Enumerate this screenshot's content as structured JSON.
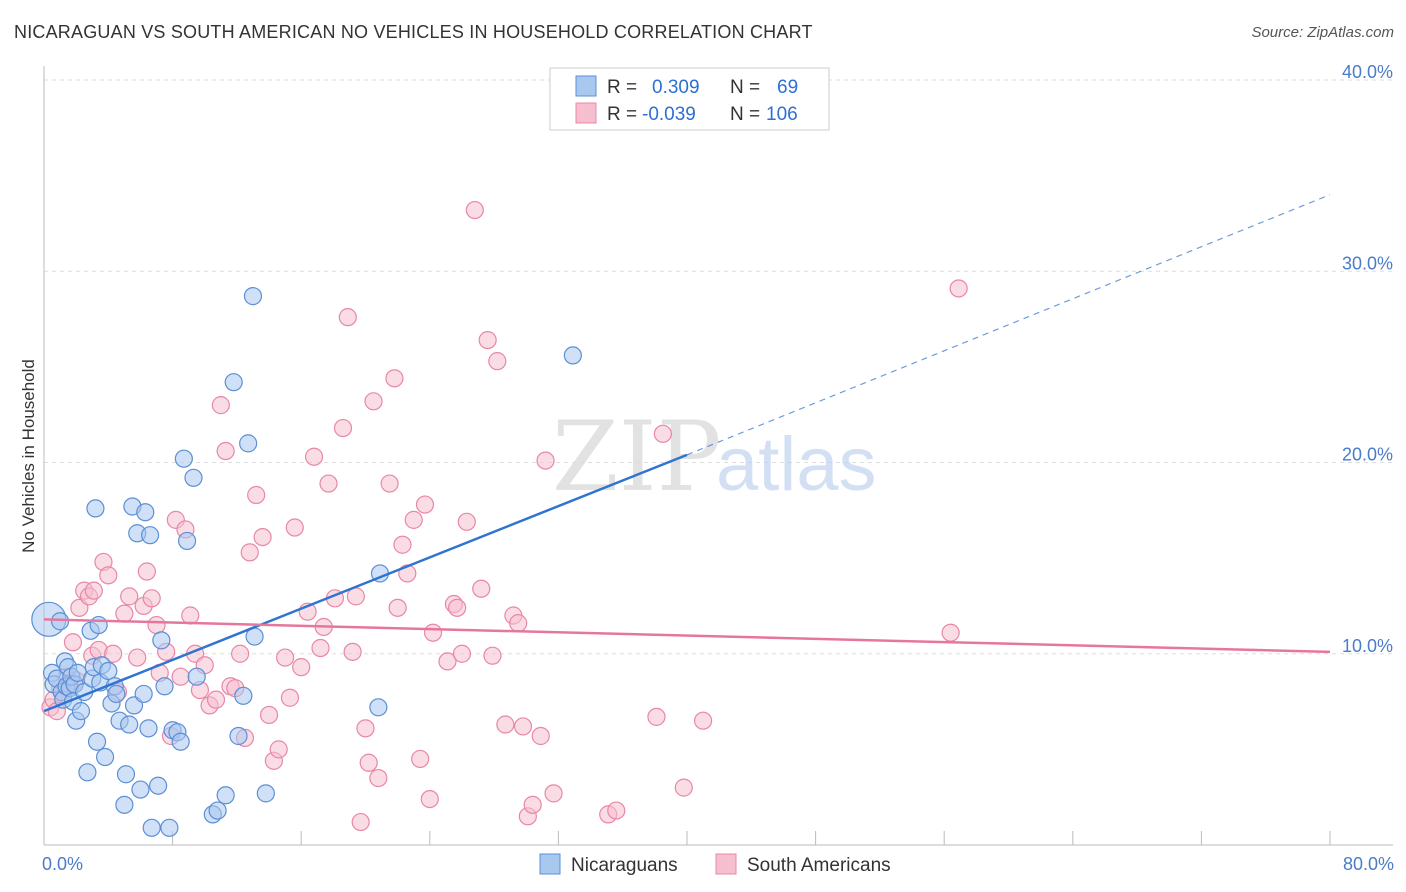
{
  "title": "NICARAGUAN VS SOUTH AMERICAN NO VEHICLES IN HOUSEHOLD CORRELATION CHART",
  "source": "Source: ZipAtlas.com",
  "watermark": {
    "zip": "ZIP",
    "atlas": "atlas"
  },
  "colors": {
    "nicaraguan_fill": "#a9c8f0",
    "nicaraguan_stroke": "#5b8fd6",
    "nicaraguan_line": "#2f74d0",
    "south_american_fill": "#f6bfd0",
    "south_american_stroke": "#e887a8",
    "south_american_line": "#e5779f",
    "grid": "#dddddd",
    "tick_text": "#4a7cc9"
  },
  "legend": {
    "rows": [
      {
        "r_label": "R =",
        "r_value": "0.309",
        "n_label": "N =",
        "n_value": "69"
      },
      {
        "r_label": "R =",
        "r_value": "-0.039",
        "n_label": "N =",
        "n_value": "106"
      }
    ]
  },
  "chart_data": {
    "type": "scatter",
    "title": "NICARAGUAN VS SOUTH AMERICAN NO VEHICLES IN HOUSEHOLD CORRELATION CHART",
    "xlabel": "",
    "ylabel": "No Vehicles in Household",
    "xlim": [
      0,
      80
    ],
    "ylim": [
      0,
      40
    ],
    "x_ticks": [
      0,
      80
    ],
    "x_tick_labels": [
      "0.0%",
      "80.0%"
    ],
    "y_ticks": [
      10,
      20,
      30,
      40
    ],
    "y_tick_labels": [
      "10.0%",
      "20.0%",
      "30.0%",
      "40.0%"
    ],
    "grid": true,
    "legend_position": "top-center",
    "series": [
      {
        "name": "Nicaraguans",
        "r": 0.309,
        "n": 69,
        "trend": {
          "x0": 0,
          "y0": 7.0,
          "x1": 40,
          "y1": 20.4,
          "dashed_to_x": 80,
          "dashed_to_y": 34.0
        },
        "points": [
          [
            0.3,
            11.8
          ],
          [
            0.5,
            9.0
          ],
          [
            0.6,
            8.4
          ],
          [
            0.8,
            8.7
          ],
          [
            1.0,
            11.7
          ],
          [
            1.1,
            8.0
          ],
          [
            1.2,
            7.6
          ],
          [
            1.3,
            9.6
          ],
          [
            1.4,
            8.3
          ],
          [
            1.5,
            9.3
          ],
          [
            1.6,
            8.2
          ],
          [
            1.7,
            8.8
          ],
          [
            1.8,
            7.5
          ],
          [
            1.9,
            8.4
          ],
          [
            2.0,
            6.5
          ],
          [
            2.1,
            9.0
          ],
          [
            2.3,
            7.0
          ],
          [
            2.5,
            8.0
          ],
          [
            2.7,
            3.8
          ],
          [
            2.9,
            11.2
          ],
          [
            3.0,
            8.7
          ],
          [
            3.1,
            9.3
          ],
          [
            3.2,
            17.6
          ],
          [
            3.3,
            5.4
          ],
          [
            3.4,
            11.5
          ],
          [
            3.5,
            8.5
          ],
          [
            3.6,
            9.4
          ],
          [
            3.8,
            4.6
          ],
          [
            4.0,
            9.1
          ],
          [
            4.2,
            7.4
          ],
          [
            4.4,
            8.3
          ],
          [
            4.5,
            7.9
          ],
          [
            4.7,
            6.5
          ],
          [
            5.0,
            2.1
          ],
          [
            5.1,
            3.7
          ],
          [
            5.3,
            6.3
          ],
          [
            5.5,
            17.7
          ],
          [
            5.6,
            7.3
          ],
          [
            5.8,
            16.3
          ],
          [
            6.0,
            2.9
          ],
          [
            6.2,
            7.9
          ],
          [
            6.3,
            17.4
          ],
          [
            6.5,
            6.1
          ],
          [
            6.6,
            16.2
          ],
          [
            6.7,
            0.9
          ],
          [
            7.1,
            3.1
          ],
          [
            7.3,
            10.7
          ],
          [
            7.5,
            8.3
          ],
          [
            7.8,
            0.9
          ],
          [
            8.0,
            6.0
          ],
          [
            8.3,
            5.9
          ],
          [
            8.5,
            5.4
          ],
          [
            8.7,
            20.2
          ],
          [
            8.9,
            15.9
          ],
          [
            9.3,
            19.2
          ],
          [
            9.5,
            8.8
          ],
          [
            10.5,
            1.6
          ],
          [
            10.8,
            1.8
          ],
          [
            11.3,
            2.6
          ],
          [
            11.8,
            24.2
          ],
          [
            12.1,
            5.7
          ],
          [
            12.4,
            7.8
          ],
          [
            12.7,
            21.0
          ],
          [
            13.1,
            10.9
          ],
          [
            13.0,
            28.7
          ],
          [
            13.8,
            2.7
          ],
          [
            20.9,
            14.2
          ],
          [
            20.8,
            7.2
          ],
          [
            32.9,
            25.6
          ]
        ]
      },
      {
        "name": "South Americans",
        "r": -0.039,
        "n": 106,
        "trend": {
          "x0": 0,
          "y0": 11.8,
          "x1": 80,
          "y1": 10.1
        },
        "points": [
          [
            0.4,
            7.2
          ],
          [
            0.6,
            7.6
          ],
          [
            0.8,
            7.0
          ],
          [
            1.0,
            8.2
          ],
          [
            1.2,
            7.9
          ],
          [
            1.4,
            8.8
          ],
          [
            1.6,
            8.4
          ],
          [
            1.8,
            10.6
          ],
          [
            2.0,
            8.6
          ],
          [
            2.2,
            12.4
          ],
          [
            2.5,
            13.3
          ],
          [
            2.8,
            13.0
          ],
          [
            3.0,
            9.9
          ],
          [
            3.1,
            13.3
          ],
          [
            3.4,
            10.2
          ],
          [
            3.7,
            14.8
          ],
          [
            4.0,
            14.1
          ],
          [
            4.3,
            10.0
          ],
          [
            4.6,
            8.0
          ],
          [
            5.0,
            12.1
          ],
          [
            5.3,
            13.0
          ],
          [
            5.8,
            9.8
          ],
          [
            6.2,
            12.5
          ],
          [
            6.4,
            14.3
          ],
          [
            6.7,
            12.9
          ],
          [
            7.0,
            11.5
          ],
          [
            7.2,
            9.0
          ],
          [
            7.6,
            10.1
          ],
          [
            7.9,
            5.7
          ],
          [
            8.2,
            17.0
          ],
          [
            8.5,
            8.8
          ],
          [
            8.8,
            16.5
          ],
          [
            9.1,
            12.0
          ],
          [
            9.4,
            10.0
          ],
          [
            9.7,
            8.1
          ],
          [
            10.0,
            9.4
          ],
          [
            10.3,
            7.3
          ],
          [
            10.7,
            7.6
          ],
          [
            11.0,
            23.0
          ],
          [
            11.3,
            20.6
          ],
          [
            11.6,
            8.3
          ],
          [
            11.9,
            8.2
          ],
          [
            12.2,
            10.0
          ],
          [
            12.5,
            5.6
          ],
          [
            12.8,
            15.3
          ],
          [
            13.2,
            18.3
          ],
          [
            13.6,
            16.1
          ],
          [
            14.0,
            6.8
          ],
          [
            14.3,
            4.4
          ],
          [
            14.6,
            5.0
          ],
          [
            15.0,
            9.8
          ],
          [
            15.3,
            7.7
          ],
          [
            15.6,
            16.6
          ],
          [
            16.0,
            9.3
          ],
          [
            16.4,
            12.2
          ],
          [
            16.8,
            20.3
          ],
          [
            17.2,
            10.3
          ],
          [
            17.4,
            11.4
          ],
          [
            17.7,
            18.9
          ],
          [
            18.1,
            12.9
          ],
          [
            18.6,
            21.8
          ],
          [
            18.9,
            27.6
          ],
          [
            19.2,
            10.1
          ],
          [
            19.4,
            13.0
          ],
          [
            19.7,
            1.2
          ],
          [
            20.0,
            6.1
          ],
          [
            20.2,
            4.3
          ],
          [
            20.5,
            23.2
          ],
          [
            20.8,
            3.5
          ],
          [
            21.5,
            18.9
          ],
          [
            21.8,
            24.4
          ],
          [
            22.0,
            12.4
          ],
          [
            22.3,
            15.7
          ],
          [
            22.6,
            14.2
          ],
          [
            23.0,
            17.0
          ],
          [
            23.4,
            4.5
          ],
          [
            23.7,
            17.8
          ],
          [
            24.0,
            2.4
          ],
          [
            24.2,
            11.1
          ],
          [
            25.1,
            9.6
          ],
          [
            25.5,
            12.6
          ],
          [
            25.7,
            12.4
          ],
          [
            26.0,
            10.0
          ],
          [
            26.3,
            16.9
          ],
          [
            26.8,
            33.2
          ],
          [
            27.2,
            13.4
          ],
          [
            27.6,
            26.4
          ],
          [
            27.9,
            9.9
          ],
          [
            28.2,
            25.3
          ],
          [
            28.7,
            6.3
          ],
          [
            29.2,
            12.0
          ],
          [
            29.5,
            11.6
          ],
          [
            29.8,
            6.2
          ],
          [
            30.1,
            1.5
          ],
          [
            30.4,
            2.1
          ],
          [
            30.9,
            5.7
          ],
          [
            31.2,
            20.1
          ],
          [
            31.7,
            2.7
          ],
          [
            35.1,
            1.6
          ],
          [
            35.6,
            1.8
          ],
          [
            38.1,
            6.7
          ],
          [
            38.5,
            21.5
          ],
          [
            39.8,
            3.0
          ],
          [
            41.0,
            6.5
          ],
          [
            56.4,
            11.1
          ],
          [
            56.9,
            29.1
          ]
        ]
      }
    ]
  }
}
